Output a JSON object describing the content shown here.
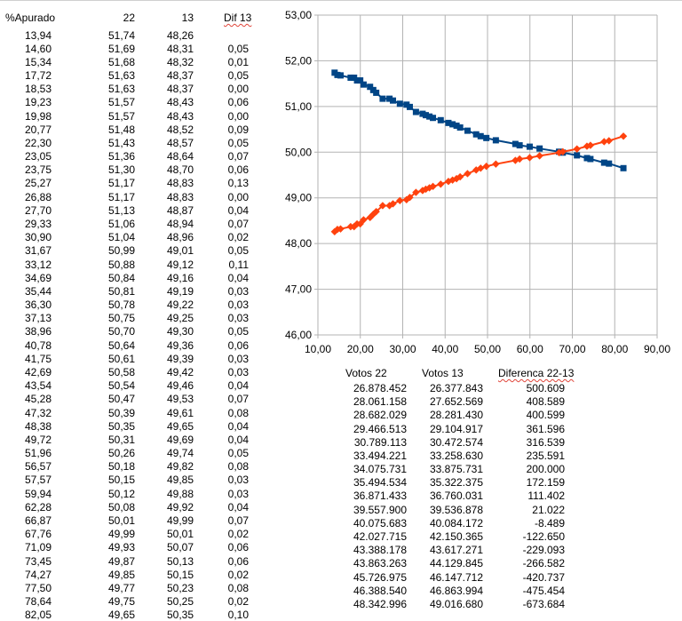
{
  "table": {
    "headers": {
      "apurado": "%Apurado",
      "c22": "22",
      "c13": "13",
      "dif": "Dif 13"
    },
    "rows": [
      [
        "13,94",
        "51,74",
        "48,26",
        ""
      ],
      [
        "14,60",
        "51,69",
        "48,31",
        "0,05"
      ],
      [
        "15,34",
        "51,68",
        "48,32",
        "0,01"
      ],
      [
        "17,72",
        "51,63",
        "48,37",
        "0,05"
      ],
      [
        "18,53",
        "51,63",
        "48,37",
        "0,00"
      ],
      [
        "19,23",
        "51,57",
        "48,43",
        "0,06"
      ],
      [
        "19,98",
        "51,57",
        "48,43",
        "0,00"
      ],
      [
        "20,77",
        "51,48",
        "48,52",
        "0,09"
      ],
      [
        "22,30",
        "51,43",
        "48,57",
        "0,05"
      ],
      [
        "23,05",
        "51,36",
        "48,64",
        "0,07"
      ],
      [
        "23,75",
        "51,30",
        "48,70",
        "0,06"
      ],
      [
        "25,27",
        "51,17",
        "48,83",
        "0,13"
      ],
      [
        "26,88",
        "51,17",
        "48,83",
        "0,00"
      ],
      [
        "27,70",
        "51,13",
        "48,87",
        "0,04"
      ],
      [
        "29,33",
        "51,06",
        "48,94",
        "0,07"
      ],
      [
        "30,90",
        "51,04",
        "48,96",
        "0,02"
      ],
      [
        "31,67",
        "50,99",
        "49,01",
        "0,05"
      ],
      [
        "33,12",
        "50,88",
        "49,12",
        "0,11"
      ],
      [
        "34,69",
        "50,84",
        "49,16",
        "0,04"
      ],
      [
        "35,44",
        "50,81",
        "49,19",
        "0,03"
      ],
      [
        "36,30",
        "50,78",
        "49,22",
        "0,03"
      ],
      [
        "37,13",
        "50,75",
        "49,25",
        "0,03"
      ],
      [
        "38,96",
        "50,70",
        "49,30",
        "0,05"
      ],
      [
        "40,78",
        "50,64",
        "49,36",
        "0,06"
      ],
      [
        "41,75",
        "50,61",
        "49,39",
        "0,03"
      ],
      [
        "42,69",
        "50,58",
        "49,42",
        "0,03"
      ],
      [
        "43,54",
        "50,54",
        "49,46",
        "0,04"
      ],
      [
        "45,28",
        "50,47",
        "49,53",
        "0,07"
      ],
      [
        "47,32",
        "50,39",
        "49,61",
        "0,08"
      ],
      [
        "48,38",
        "50,35",
        "49,65",
        "0,04"
      ],
      [
        "49,72",
        "50,31",
        "49,69",
        "0,04"
      ],
      [
        "51,96",
        "50,26",
        "49,74",
        "0,05"
      ],
      [
        "56,57",
        "50,18",
        "49,82",
        "0,08"
      ],
      [
        "57,57",
        "50,15",
        "49,85",
        "0,03"
      ],
      [
        "59,94",
        "50,12",
        "49,88",
        "0,03"
      ],
      [
        "62,28",
        "50,08",
        "49,92",
        "0,04"
      ],
      [
        "66,87",
        "50,01",
        "49,99",
        "0,07"
      ],
      [
        "67,76",
        "49,99",
        "50,01",
        "0,02"
      ],
      [
        "71,09",
        "49,93",
        "50,07",
        "0,06"
      ],
      [
        "73,45",
        "49,87",
        "50,13",
        "0,06"
      ],
      [
        "74,27",
        "49,85",
        "50,15",
        "0,02"
      ],
      [
        "77,50",
        "49,77",
        "50,23",
        "0,08"
      ],
      [
        "78,64",
        "49,75",
        "50,25",
        "0,02"
      ],
      [
        "82,05",
        "49,65",
        "50,35",
        "0,10"
      ]
    ]
  },
  "votes_table": {
    "headers": {
      "v22": "Votos 22",
      "v13": "Votos 13",
      "diff": "Diferenca 22-13"
    },
    "rows": [
      [
        "26.878.452",
        "26.377.843",
        "500.609"
      ],
      [
        "28.061.158",
        "27.652.569",
        "408.589"
      ],
      [
        "28.682.029",
        "28.281.430",
        "400.599"
      ],
      [
        "29.466.513",
        "29.104.917",
        "361.596"
      ],
      [
        "30.789.113",
        "30.472.574",
        "316.539"
      ],
      [
        "33.494.221",
        "33.258.630",
        "235.591"
      ],
      [
        "34.075.731",
        "33.875.731",
        "200.000"
      ],
      [
        "35.494.534",
        "35.322.375",
        "172.159"
      ],
      [
        "36.871.433",
        "36.760.031",
        "111.402"
      ],
      [
        "39.557.900",
        "39.536.878",
        "21.022"
      ],
      [
        "40.075.683",
        "40.084.172",
        "-8.489"
      ],
      [
        "42.027.715",
        "42.150.365",
        "-122.650"
      ],
      [
        "43.388.178",
        "43.617.271",
        "-229.093"
      ],
      [
        "43.863.263",
        "44.129.845",
        "-266.582"
      ],
      [
        "45.726.975",
        "46.147.712",
        "-420.737"
      ],
      [
        "46.388.540",
        "46.863.994",
        "-475.454"
      ],
      [
        "48.342.996",
        "49.016.680",
        "-673.684"
      ]
    ]
  },
  "chart_data": {
    "type": "line",
    "xlim": [
      10,
      90
    ],
    "ylim": [
      46,
      53
    ],
    "x_ticks": [
      "10,00",
      "20,00",
      "30,00",
      "40,00",
      "50,00",
      "60,00",
      "70,00",
      "80,00",
      "90,00"
    ],
    "y_ticks": [
      "46,00",
      "47,00",
      "48,00",
      "49,00",
      "50,00",
      "51,00",
      "52,00",
      "53,00"
    ],
    "grid": true,
    "legend": "none",
    "x": [
      13.94,
      14.6,
      15.34,
      17.72,
      18.53,
      19.23,
      19.98,
      20.77,
      22.3,
      23.05,
      23.75,
      25.27,
      26.88,
      27.7,
      29.33,
      30.9,
      31.67,
      33.12,
      34.69,
      35.44,
      36.3,
      37.13,
      38.96,
      40.78,
      41.75,
      42.69,
      43.54,
      45.28,
      47.32,
      48.38,
      49.72,
      51.96,
      56.57,
      57.57,
      59.94,
      62.28,
      66.87,
      67.76,
      71.09,
      73.45,
      74.27,
      77.5,
      78.64,
      82.05
    ],
    "series": [
      {
        "color": "#004586",
        "marker": "square",
        "values": [
          51.74,
          51.69,
          51.68,
          51.63,
          51.63,
          51.57,
          51.57,
          51.48,
          51.43,
          51.36,
          51.3,
          51.17,
          51.17,
          51.13,
          51.06,
          51.04,
          50.99,
          50.88,
          50.84,
          50.81,
          50.78,
          50.75,
          50.7,
          50.64,
          50.61,
          50.58,
          50.54,
          50.47,
          50.39,
          50.35,
          50.31,
          50.26,
          50.18,
          50.15,
          50.12,
          50.08,
          50.01,
          49.99,
          49.93,
          49.87,
          49.85,
          49.77,
          49.75,
          49.65
        ]
      },
      {
        "color": "#ff420e",
        "marker": "diamond",
        "values": [
          48.26,
          48.31,
          48.32,
          48.37,
          48.37,
          48.43,
          48.43,
          48.52,
          48.57,
          48.64,
          48.7,
          48.83,
          48.83,
          48.87,
          48.94,
          48.96,
          49.01,
          49.12,
          49.16,
          49.19,
          49.22,
          49.25,
          49.3,
          49.36,
          49.39,
          49.42,
          49.46,
          49.53,
          49.61,
          49.65,
          49.69,
          49.74,
          49.82,
          49.85,
          49.88,
          49.92,
          49.99,
          50.01,
          50.07,
          50.13,
          50.15,
          50.23,
          50.25,
          50.35
        ]
      }
    ]
  }
}
